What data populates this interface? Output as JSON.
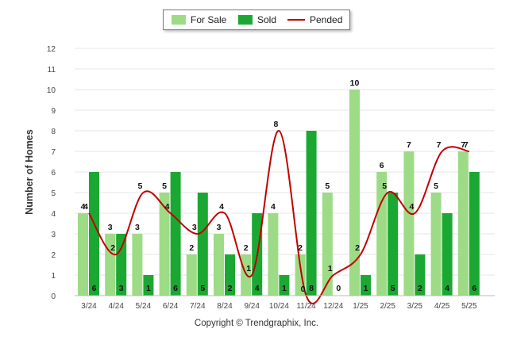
{
  "chart_data": {
    "type": "bar",
    "ylabel": "Number of Homes",
    "xlabel": "",
    "ylim": [
      0,
      12
    ],
    "yticks": [
      "0",
      "1",
      "2",
      "3",
      "4",
      "5",
      "6",
      "7",
      "8",
      "9",
      "10",
      "11",
      "12"
    ],
    "categories": [
      "3/24",
      "4/24",
      "5/24",
      "6/24",
      "7/24",
      "8/24",
      "9/24",
      "10/24",
      "11/24",
      "12/24",
      "1/25",
      "2/25",
      "3/25",
      "4/25",
      "5/25"
    ],
    "series": [
      {
        "name": "For Sale",
        "type": "bar",
        "color": "#9ddb86",
        "values": [
          4,
          3,
          3,
          5,
          2,
          3,
          2,
          4,
          2,
          5,
          10,
          6,
          7,
          5,
          7
        ]
      },
      {
        "name": "Sold",
        "type": "bar",
        "color": "#1aa832",
        "values": [
          6,
          3,
          1,
          6,
          5,
          2,
          4,
          1,
          8,
          0,
          1,
          5,
          2,
          4,
          6
        ]
      },
      {
        "name": "Pended",
        "type": "line",
        "color": "#c00000",
        "values": [
          4,
          2,
          5,
          4,
          3,
          4,
          1,
          8,
          0,
          1,
          2,
          5,
          4,
          7,
          7
        ]
      }
    ],
    "grid": true,
    "legend": "top-center"
  },
  "footer": {
    "credit": "Copyright © Trendgraphix, Inc."
  }
}
